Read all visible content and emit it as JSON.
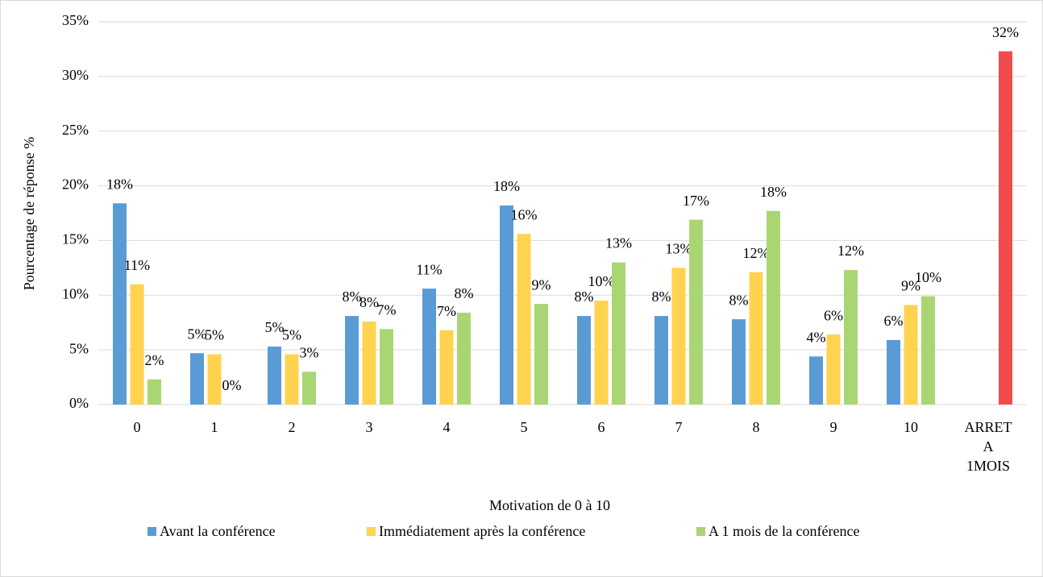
{
  "chart_data": {
    "type": "bar",
    "xlabel": "Motivation de 0 à 10",
    "ylabel": "Pourcentage de réponse %",
    "categories": [
      "0",
      "1",
      "2",
      "3",
      "4",
      "5",
      "6",
      "7",
      "8",
      "9",
      "10",
      "ARRET A 1MOIS"
    ],
    "series": [
      {
        "name": "Avant la conférence",
        "color": "#5b9bd5",
        "values": [
          18.4,
          4.7,
          5.3,
          8.1,
          10.6,
          18.2,
          8.1,
          8.1,
          7.8,
          4.4,
          5.9,
          null
        ],
        "value_labels": [
          "18%",
          "5%",
          "5%",
          "8%",
          "11%",
          "18%",
          "8%",
          "8%",
          "8%",
          "4%",
          "6%",
          null
        ]
      },
      {
        "name": "Immédiatement après la conférence",
        "color": "#ffd34f",
        "values": [
          11.0,
          4.6,
          4.6,
          7.6,
          6.8,
          15.6,
          9.5,
          12.5,
          12.1,
          6.4,
          9.1,
          null
        ],
        "value_labels": [
          "11%",
          "5%",
          "5%",
          "8%",
          "7%",
          "16%",
          "10%",
          "13%",
          "12%",
          "6%",
          "9%",
          null
        ]
      },
      {
        "name": "A 1 mois de la conférence",
        "color": "#a9d672",
        "values": [
          2.3,
          0,
          3.0,
          6.9,
          8.4,
          9.2,
          13.0,
          16.9,
          17.7,
          12.3,
          9.9,
          null
        ],
        "value_labels": [
          "2%",
          "0%",
          "3%",
          "7%",
          "8%",
          "9%",
          "13%",
          "17%",
          "18%",
          "12%",
          "10%",
          null
        ]
      },
      {
        "color": "#f24b4b",
        "values": [
          null,
          null,
          null,
          null,
          null,
          null,
          null,
          null,
          null,
          null,
          null,
          32.3
        ],
        "value_labels": [
          null,
          null,
          null,
          null,
          null,
          null,
          null,
          null,
          null,
          null,
          null,
          "32%"
        ]
      }
    ],
    "ylim": [
      0,
      35
    ],
    "yticks": [
      {
        "value": 0,
        "label": "0%"
      },
      {
        "value": 5,
        "label": "5%"
      },
      {
        "value": 10,
        "label": "10%"
      },
      {
        "value": 15,
        "label": "15%"
      },
      {
        "value": 20,
        "label": "20%"
      },
      {
        "value": 25,
        "label": "25%"
      },
      {
        "value": 30,
        "label": "30%"
      },
      {
        "value": 35,
        "label": "35%"
      }
    ],
    "grid": true,
    "legend": "bottom"
  }
}
